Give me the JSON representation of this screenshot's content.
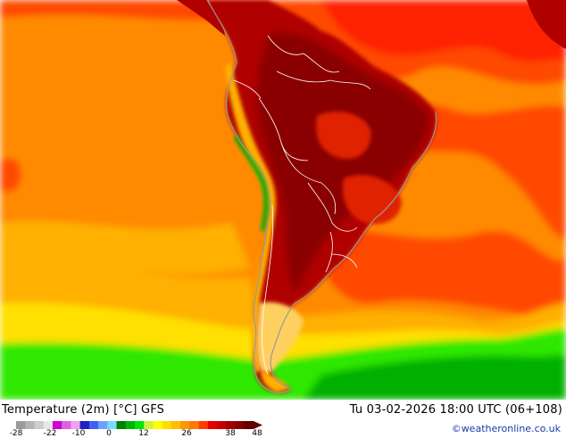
{
  "header": {
    "title": "Temperature (2m) [°C] GFS",
    "valid_time": "Tu 03-02-2026 18:00 UTC (06+108)",
    "credit": "©weatheronline.co.uk"
  },
  "legend": {
    "ticks": [
      "-28",
      "-22",
      "-10",
      "0",
      "12",
      "26",
      "38",
      "48"
    ],
    "colors": [
      "#9b9b9b",
      "#b4b4b4",
      "#cdcdcd",
      "#e6e6e6",
      "#d000d0",
      "#e060e0",
      "#f0a0f0",
      "#2020c0",
      "#3c64f0",
      "#6ea0ff",
      "#78dcff",
      "#008000",
      "#00b400",
      "#00e600",
      "#d2f03c",
      "#ffff00",
      "#ffdc00",
      "#ffbe00",
      "#ff9600",
      "#ff7800",
      "#ff3c00",
      "#e60000",
      "#c80000",
      "#a00000",
      "#820000",
      "#600000"
    ]
  },
  "map": {
    "region": "South America",
    "colors": {
      "ocean_deep": "#ff8a00",
      "ocean_warm": "#ff4a00",
      "ocean_tropic": "#ff2000",
      "ocean_cool": "#ffb000",
      "ocean_cold": "#ffe000",
      "cold_green": "#2ee800",
      "deep_green": "#00b000",
      "land_hot": "#b00000",
      "land_hottest": "#8a0000",
      "land_warm": "#e02000",
      "plateau": "#ff7000",
      "andes_cool": "#ffb000",
      "patagonia": "#ffd060",
      "borders": "#ffffff",
      "coast": "#9a9a9a"
    }
  }
}
